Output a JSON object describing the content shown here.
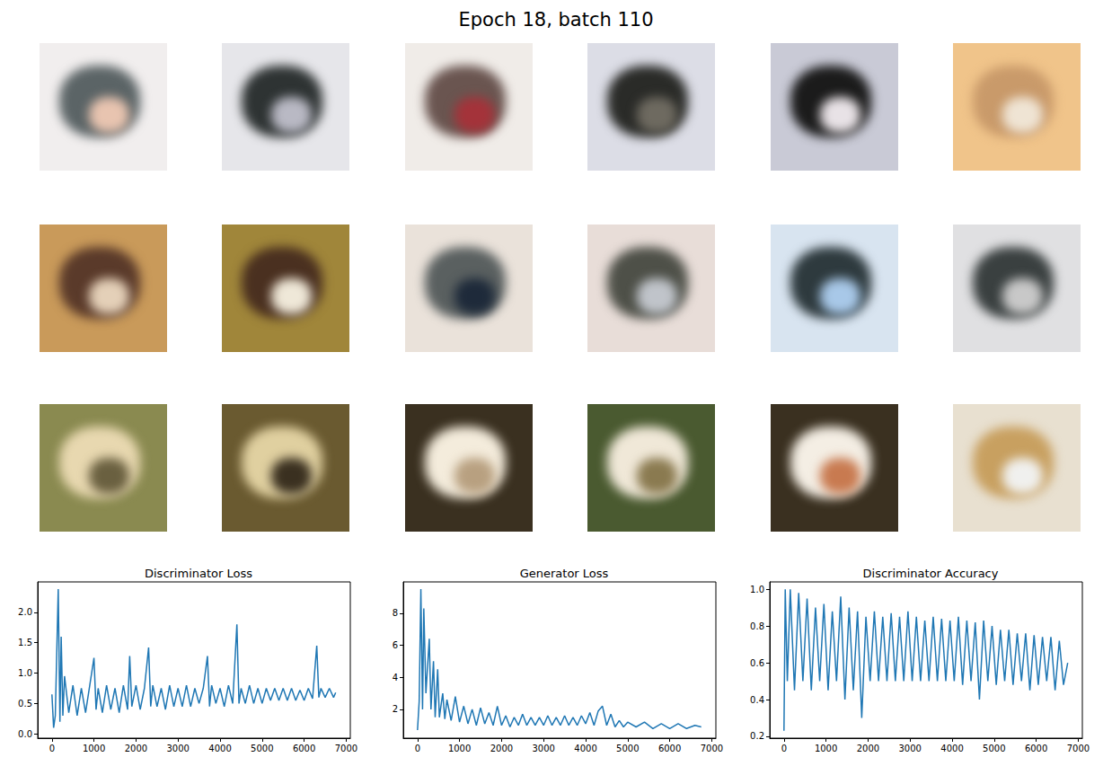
{
  "title": "Epoch 18, batch 110",
  "chart_data": [
    {
      "type": "line",
      "title": "Discriminator Loss",
      "color": "#1f77b4",
      "grid": false,
      "x": [
        0,
        40,
        80,
        150,
        190,
        220,
        260,
        300,
        400,
        500,
        600,
        700,
        800,
        900,
        1000,
        1050,
        1100,
        1200,
        1300,
        1400,
        1500,
        1600,
        1700,
        1800,
        1850,
        1900,
        2000,
        2100,
        2200,
        2300,
        2350,
        2400,
        2500,
        2600,
        2700,
        2800,
        2900,
        3000,
        3100,
        3200,
        3300,
        3400,
        3500,
        3600,
        3700,
        3750,
        3800,
        3900,
        4000,
        4100,
        4200,
        4300,
        4400,
        4450,
        4500,
        4600,
        4700,
        4800,
        4900,
        5000,
        5100,
        5200,
        5300,
        5400,
        5500,
        5600,
        5700,
        5800,
        5900,
        6000,
        6100,
        6200,
        6300,
        6350,
        6400,
        6500,
        6600,
        6700,
        6750
      ],
      "values": [
        0.65,
        0.1,
        0.3,
        2.38,
        0.2,
        1.6,
        0.3,
        0.95,
        0.35,
        0.8,
        0.3,
        0.75,
        0.35,
        0.8,
        1.25,
        0.4,
        0.75,
        0.35,
        0.8,
        0.4,
        0.75,
        0.35,
        0.8,
        0.4,
        1.28,
        0.45,
        0.8,
        0.4,
        0.75,
        1.42,
        0.45,
        0.8,
        0.45,
        0.75,
        0.4,
        0.8,
        0.45,
        0.75,
        0.45,
        0.8,
        0.45,
        0.75,
        0.5,
        0.75,
        1.28,
        0.45,
        0.8,
        0.5,
        0.75,
        0.45,
        0.8,
        0.5,
        1.8,
        0.5,
        0.75,
        0.5,
        0.8,
        0.5,
        0.75,
        0.5,
        0.75,
        0.55,
        0.75,
        0.55,
        0.75,
        0.55,
        0.75,
        0.55,
        0.72,
        0.55,
        0.75,
        0.58,
        1.45,
        0.6,
        0.75,
        0.6,
        0.75,
        0.6,
        0.68
      ],
      "xlim": [
        -338,
        7098
      ],
      "xticks": [
        0,
        1000,
        2000,
        3000,
        4000,
        5000,
        6000,
        7000
      ],
      "ylim": [
        -0.07,
        2.5
      ],
      "yticks": [
        {
          "value": 0,
          "label": "0.0"
        },
        {
          "value": 0.5,
          "label": "0.5"
        },
        {
          "value": 1,
          "label": "1.0"
        },
        {
          "value": 1.5,
          "label": "1.5"
        },
        {
          "value": 2,
          "label": "2.0"
        }
      ]
    },
    {
      "type": "line",
      "title": "Generator Loss",
      "color": "#1f77b4",
      "grid": false,
      "x": [
        0,
        40,
        80,
        120,
        150,
        200,
        280,
        320,
        380,
        420,
        480,
        520,
        600,
        650,
        700,
        800,
        900,
        1000,
        1100,
        1200,
        1300,
        1400,
        1500,
        1600,
        1700,
        1800,
        1900,
        2000,
        2100,
        2200,
        2300,
        2400,
        2500,
        2600,
        2700,
        2800,
        2900,
        3000,
        3100,
        3200,
        3300,
        3400,
        3500,
        3600,
        3700,
        3800,
        3900,
        4000,
        4100,
        4200,
        4300,
        4400,
        4500,
        4600,
        4700,
        4800,
        4900,
        5000,
        5200,
        5400,
        5600,
        5800,
        6000,
        6200,
        6400,
        6600,
        6750
      ],
      "values": [
        0.7,
        2.5,
        9.5,
        2.0,
        8.3,
        3.0,
        6.4,
        2.0,
        5.0,
        1.5,
        4.5,
        1.5,
        3.0,
        1.4,
        2.6,
        1.3,
        2.8,
        1.2,
        2.2,
        1.1,
        2.0,
        1.0,
        2.1,
        1.1,
        1.8,
        1.0,
        2.2,
        1.0,
        1.6,
        0.9,
        1.5,
        1.0,
        1.7,
        1.0,
        1.5,
        1.0,
        1.5,
        1.0,
        1.6,
        1.0,
        1.5,
        1.0,
        1.6,
        1.0,
        1.5,
        1.0,
        1.6,
        1.1,
        1.8,
        1.0,
        1.9,
        2.2,
        1.0,
        1.7,
        0.9,
        1.3,
        0.9,
        1.2,
        0.9,
        1.2,
        0.8,
        1.1,
        0.8,
        1.1,
        0.8,
        1.0,
        0.9
      ],
      "xlim": [
        -338,
        7098
      ],
      "xticks": [
        0,
        1000,
        2000,
        3000,
        4000,
        5000,
        6000,
        7000
      ],
      "ylim": [
        0.2,
        9.95
      ],
      "yticks": [
        2,
        4,
        6,
        8
      ]
    },
    {
      "type": "line",
      "title": "Discriminator Accuracy",
      "color": "#1f77b4",
      "grid": false,
      "x": [
        0,
        30,
        80,
        150,
        250,
        350,
        450,
        550,
        650,
        750,
        850,
        950,
        1050,
        1150,
        1250,
        1350,
        1450,
        1550,
        1650,
        1750,
        1850,
        1950,
        2050,
        2150,
        2250,
        2350,
        2450,
        2550,
        2650,
        2750,
        2850,
        2950,
        3050,
        3150,
        3250,
        3350,
        3450,
        3550,
        3650,
        3750,
        3850,
        3950,
        4050,
        4150,
        4250,
        4350,
        4450,
        4550,
        4650,
        4750,
        4850,
        4950,
        5050,
        5150,
        5250,
        5350,
        5450,
        5550,
        5650,
        5750,
        5850,
        5950,
        6050,
        6150,
        6250,
        6350,
        6450,
        6550,
        6650,
        6750
      ],
      "values": [
        0.23,
        1.0,
        0.5,
        1.0,
        0.45,
        0.98,
        0.5,
        0.95,
        0.45,
        0.9,
        0.5,
        0.92,
        0.45,
        0.88,
        0.5,
        0.96,
        0.4,
        0.9,
        0.45,
        0.88,
        0.3,
        0.85,
        0.5,
        0.88,
        0.5,
        0.85,
        0.5,
        0.87,
        0.5,
        0.85,
        0.5,
        0.88,
        0.5,
        0.85,
        0.5,
        0.83,
        0.5,
        0.85,
        0.5,
        0.84,
        0.5,
        0.83,
        0.5,
        0.85,
        0.48,
        0.83,
        0.5,
        0.82,
        0.4,
        0.83,
        0.5,
        0.8,
        0.48,
        0.78,
        0.5,
        0.78,
        0.48,
        0.76,
        0.5,
        0.76,
        0.45,
        0.75,
        0.48,
        0.74,
        0.5,
        0.74,
        0.45,
        0.72,
        0.48,
        0.6
      ],
      "xlim": [
        -338,
        7098
      ],
      "xticks": [
        0,
        1000,
        2000,
        3000,
        4000,
        5000,
        6000,
        7000
      ],
      "ylim": [
        0.19,
        1.04
      ],
      "yticks": [
        0.2,
        0.4,
        0.6,
        0.8,
        {
          "value": 1,
          "label": "1.0"
        }
      ]
    }
  ]
}
